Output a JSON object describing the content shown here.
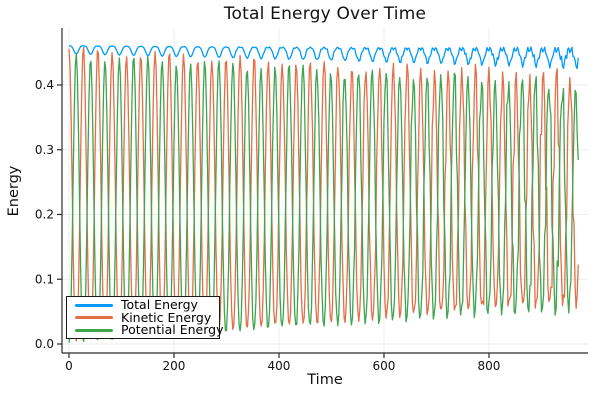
{
  "title": "Total Energy Over Time",
  "axes": {
    "x_label": "Time",
    "y_label": "Energy",
    "x_tick_values": [
      0,
      200,
      400,
      600,
      800
    ],
    "x_tick_labels": [
      "0",
      "200",
      "400",
      "600",
      "800"
    ],
    "y_tick_values": [
      0.0,
      0.1,
      0.2,
      0.3,
      0.4
    ],
    "y_tick_labels": [
      "0.0",
      "0.1",
      "0.2",
      "0.3",
      "0.4"
    ]
  },
  "legend": {
    "items": [
      {
        "label": "Total Energy",
        "color": "#009AFA"
      },
      {
        "label": "Kinetic Energy",
        "color": "#E36F47"
      },
      {
        "label": "Potential Energy",
        "color": "#3EA44E"
      }
    ]
  },
  "colors": {
    "grid": "#ececec",
    "spine": "#2b2b2b",
    "tick_text": "#111111",
    "background": "#ffffff"
  },
  "chart_data": {
    "type": "line",
    "title": "Total Energy Over Time",
    "xlabel": "Time",
    "ylabel": "Energy",
    "xlim": [
      -13.3,
      988.6
    ],
    "ylim": [
      -0.0139,
      0.488
    ],
    "grid": true,
    "legend_position": "bottom-left",
    "t_start": 0,
    "t_end": 970,
    "sample_step": 2,
    "period_start": 27.5,
    "period_end": 25.5,
    "series": [
      {
        "name": "Total Energy",
        "color": "#009AFA",
        "model": "scalloped_top",
        "description": "Nearly constant ~0.46, declining slightly to ~0.45; shallow scalloped dips once per exchange cycle that deepen from ~0.013 to ~0.025 and grow ragged toward t=970",
        "params": {
          "base_start": 0.4605,
          "base_end": 0.454,
          "dip_start": 0.0125,
          "dip_end": 0.025,
          "jitter": 0.005,
          "phase_jitter": 0.2,
          "seed": 0.7
        }
      },
      {
        "name": "Kinetic Energy",
        "color": "#E36F47",
        "model": "exchange_oscillation",
        "description": "Starts at maximum ~0.456 at t=0, oscillates max-min every ~27 time units; peak envelope decays 0.456 to ~0.41, minima rise 0.004 to ~0.064; increasingly ragged/aliased after t~600",
        "params": {
          "peak_start": 0.456,
          "peak_end": 0.41,
          "min_start": 0.004,
          "min_end": 0.064,
          "wobble": 0.006,
          "jitter": 0.013,
          "phase_jitter": 0.25,
          "seed": 0
        }
      },
      {
        "name": "Potential Energy",
        "color": "#3EA44E",
        "model": "exchange_oscillation",
        "description": "Anti-phase with kinetic energy (starts near 0); peak envelope decays 0.447 to ~0.40, minima rise 0.002 to ~0.058; phase drifts ~0.5 rad by t=970 producing interleaved ragged peaks",
        "params": {
          "peak_start": 0.447,
          "peak_end": 0.402,
          "min_start": 0.002,
          "min_end": 0.058,
          "wobble": 0.006,
          "jitter": 0.013,
          "phase_jitter": 0.25,
          "antiphase": true,
          "drift": 0.5,
          "seed": 2.1
        }
      }
    ]
  }
}
